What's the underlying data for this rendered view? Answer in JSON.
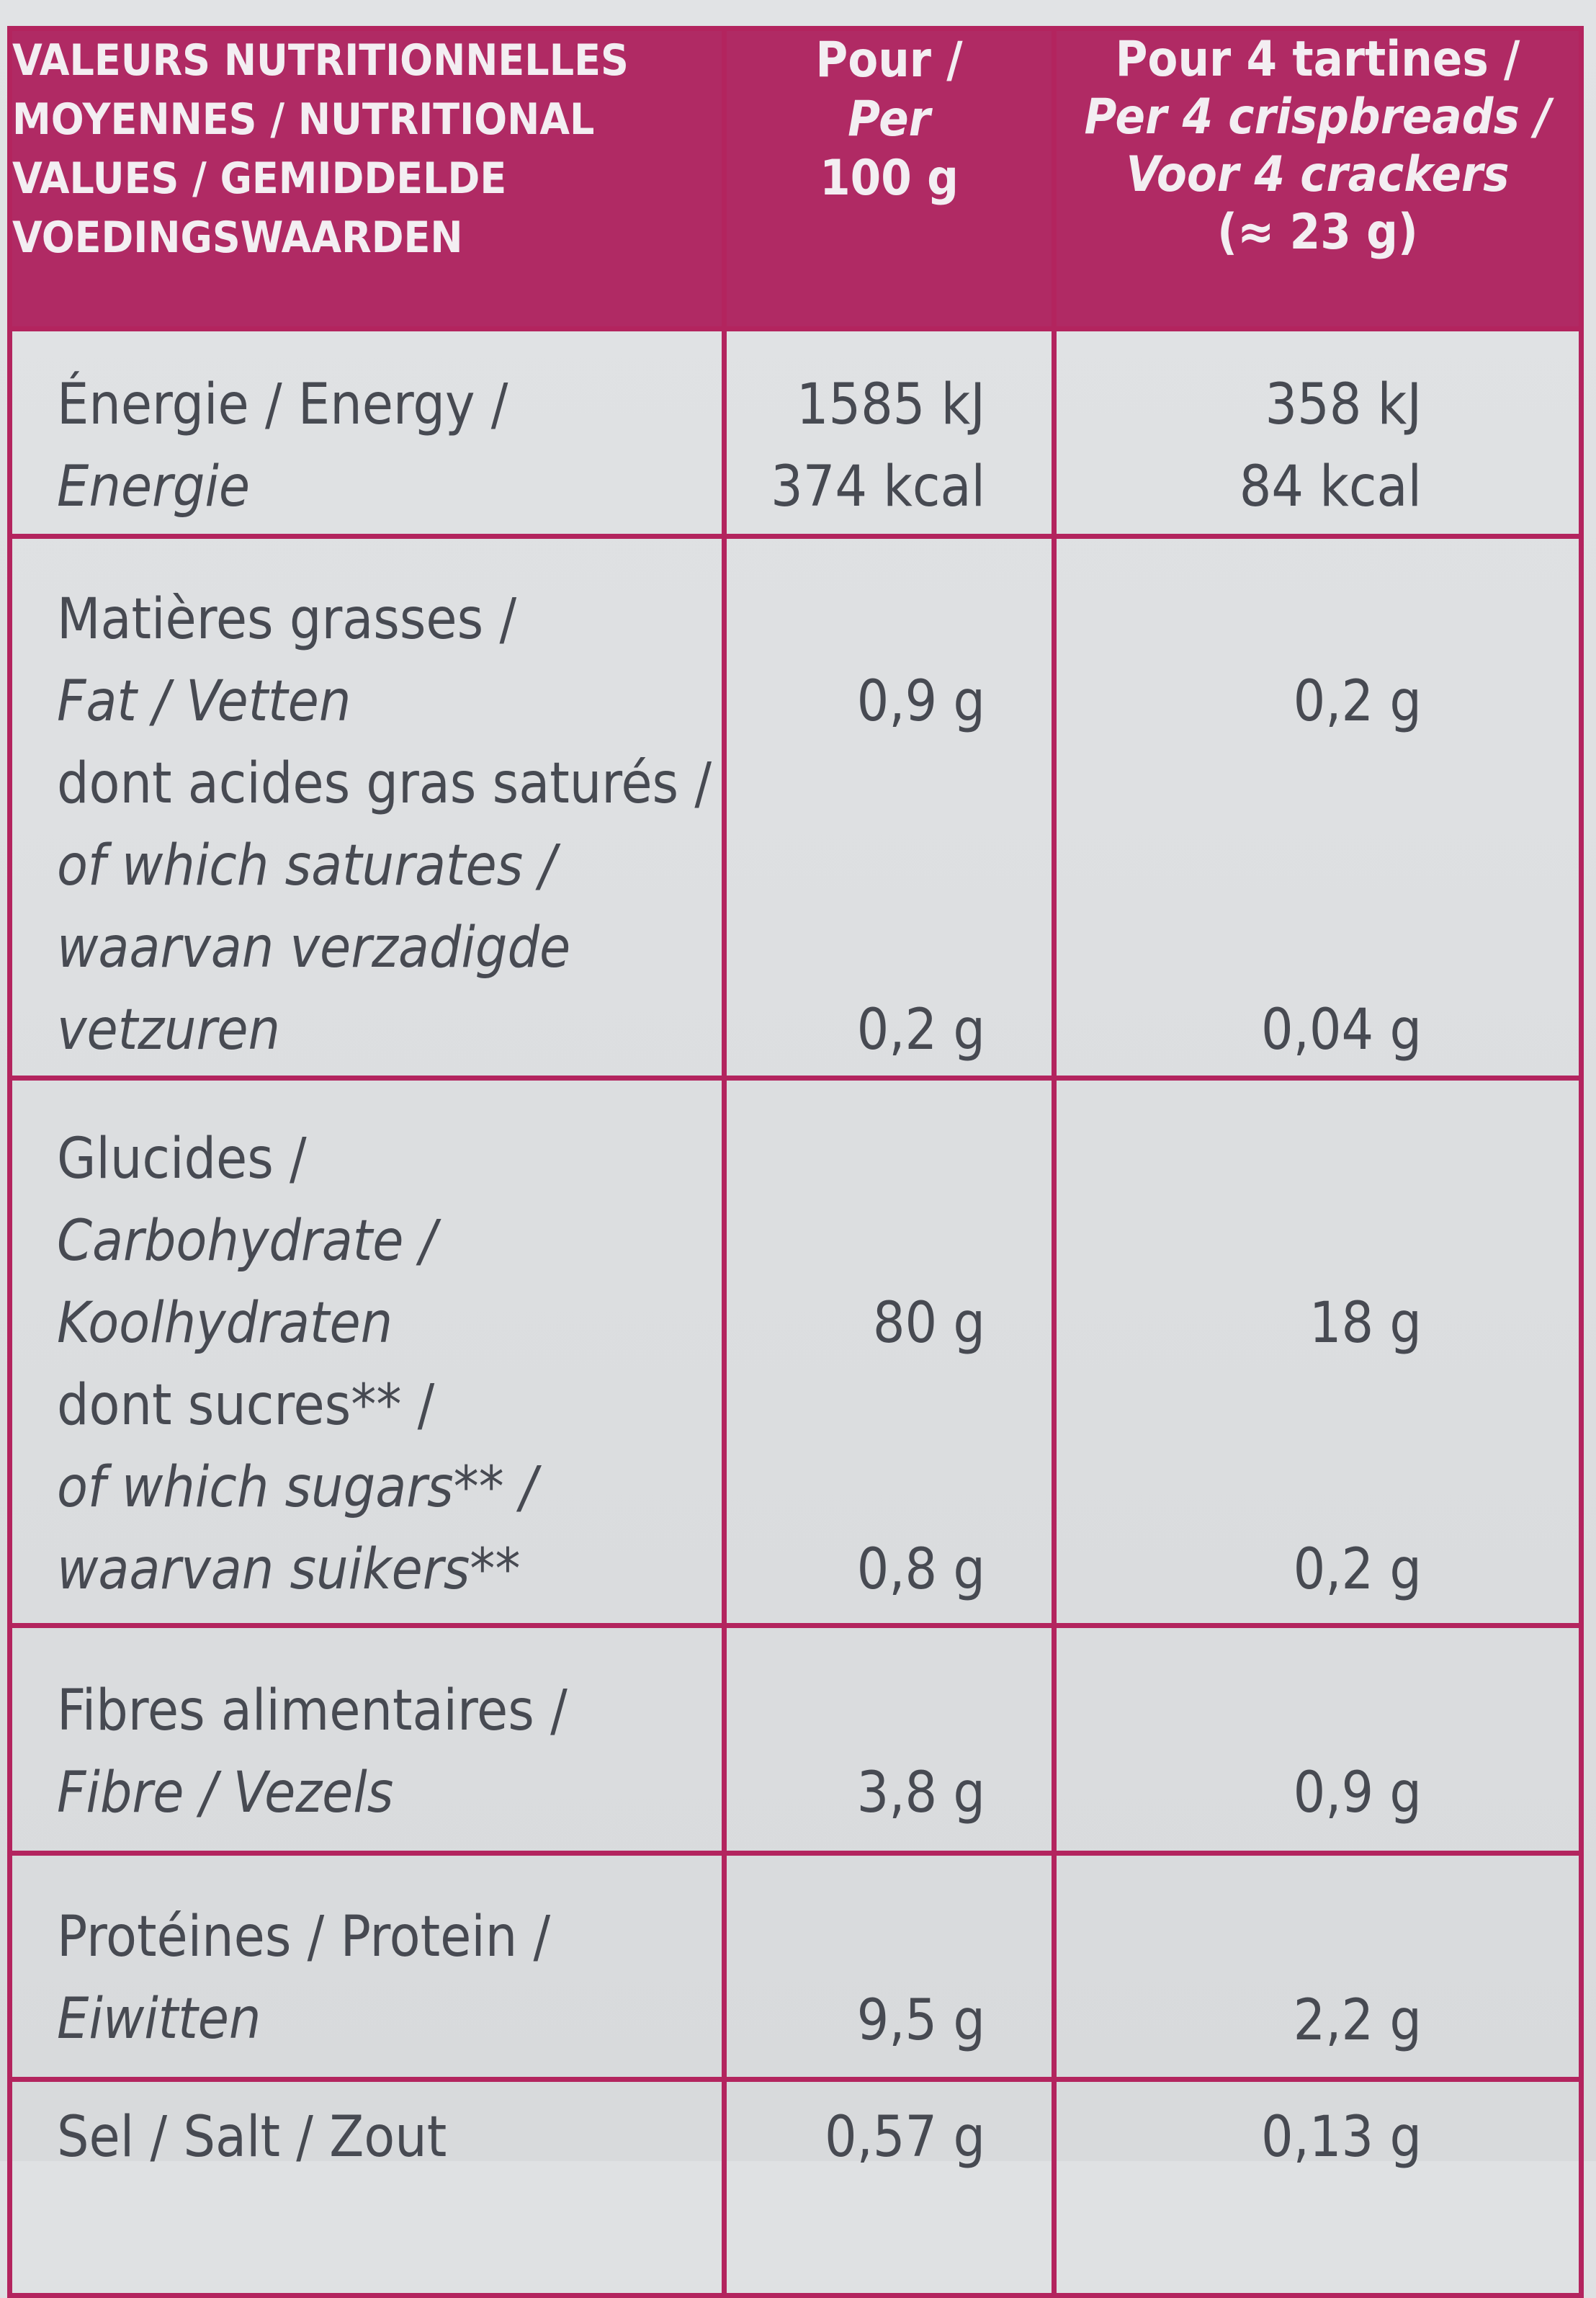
{
  "table": {
    "header": {
      "title_lines": [
        "VALEURS NUTRITIONNELLES",
        "MOYENNES / NUTRITIONAL",
        "VALUES / GEMIDDELDE",
        "VOEDINGSWAARDEN"
      ],
      "per100_lines": [
        "Pour /",
        "Per",
        "100 g"
      ],
      "portion_lines": [
        "Pour 4 tartines /",
        "Per 4 crispbreads /",
        "Voor 4 crackers",
        "(≈ 23 g)"
      ]
    },
    "rows": {
      "energy": {
        "label_lines": [
          "Énergie / Energy /",
          "Energie"
        ],
        "per100": [
          "1585 kJ",
          "374 kcal"
        ],
        "portion": [
          "358 kJ",
          "84 kcal"
        ]
      },
      "fat": {
        "label_lines": [
          "Matières grasses /",
          "Fat / Vetten"
        ],
        "per100": "0,9 g",
        "portion": "0,2 g"
      },
      "saturates": {
        "label_lines": [
          "dont acides gras saturés /",
          "of which saturates /",
          "waarvan verzadigde",
          "vetzuren"
        ],
        "per100": "0,2 g",
        "portion": "0,04 g"
      },
      "carbohydrate": {
        "label_lines": [
          "Glucides /",
          "Carbohydrate /",
          "Koolhydraten"
        ],
        "per100": "80 g",
        "portion": "18 g"
      },
      "sugars": {
        "label_lines": [
          "dont sucres** /",
          "of which sugars** /",
          "waarvan suikers**"
        ],
        "per100": "0,8 g",
        "portion": "0,2 g"
      },
      "fibre": {
        "label_lines": [
          "Fibres alimentaires /",
          "Fibre / Vezels"
        ],
        "per100": "3,8 g",
        "portion": "0,9 g"
      },
      "protein": {
        "label_lines": [
          "Protéines / Protein /",
          "Eiwitten"
        ],
        "per100": "9,5 g",
        "portion": "2,2 g"
      },
      "salt": {
        "label_lines": [
          "Sel / Salt / Zout"
        ],
        "per100": "0,57 g",
        "portion": "0,13 g"
      }
    }
  },
  "colors": {
    "accent": "#b02a64",
    "border": "#b3245e",
    "text": "#474a52",
    "paper": "#dfe1e3"
  }
}
